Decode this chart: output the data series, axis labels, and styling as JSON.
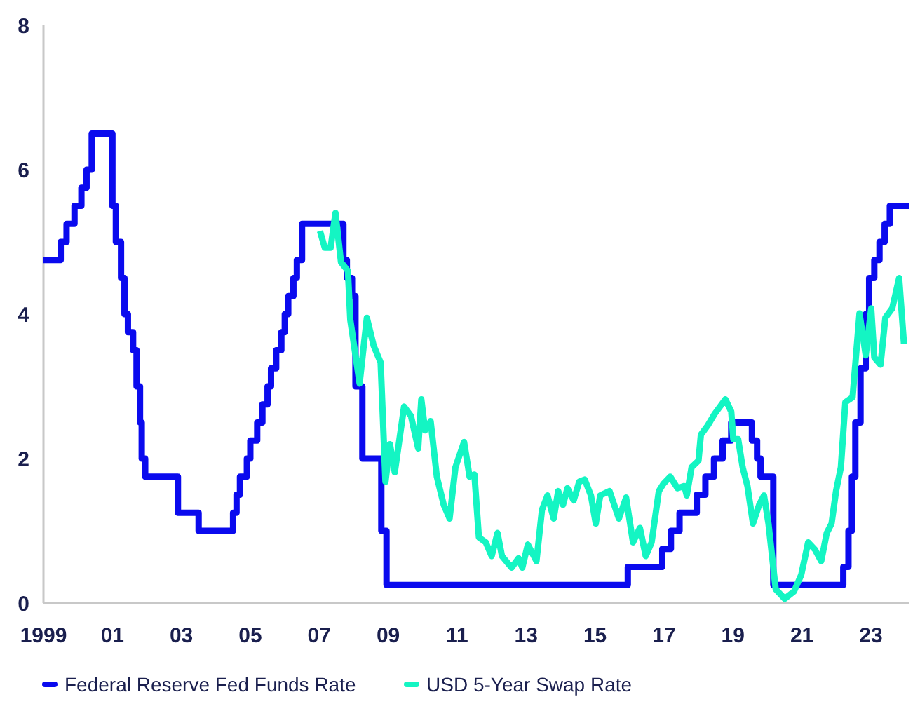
{
  "chart_data": {
    "type": "line",
    "xlim": [
      1999,
      2024.1
    ],
    "ylim": [
      0,
      8
    ],
    "yticks": [
      0,
      2,
      4,
      6,
      8
    ],
    "xticks": [
      {
        "value": 1999,
        "label": "1999"
      },
      {
        "value": 2001,
        "label": "01"
      },
      {
        "value": 2003,
        "label": "03"
      },
      {
        "value": 2005,
        "label": "05"
      },
      {
        "value": 2007,
        "label": "07"
      },
      {
        "value": 2009,
        "label": "09"
      },
      {
        "value": 2011,
        "label": "11"
      },
      {
        "value": 2013,
        "label": "13"
      },
      {
        "value": 2015,
        "label": "15"
      },
      {
        "value": 2017,
        "label": "17"
      },
      {
        "value": 2019,
        "label": "19"
      },
      {
        "value": 2021,
        "label": "21"
      },
      {
        "value": 2023,
        "label": "23"
      }
    ],
    "grid": false,
    "legend": "bottom",
    "marker": "none",
    "line_style": "solid",
    "series": [
      {
        "name": "Federal Reserve Fed Funds Rate",
        "type": "step",
        "color": "#0a0aee",
        "x": [
          1999,
          1999.5,
          1999.67,
          1999.9,
          2000.1,
          2000.25,
          2000.4,
          2001,
          2001.1,
          2001.25,
          2001.35,
          2001.45,
          2001.6,
          2001.7,
          2001.8,
          2001.85,
          2001.95,
          2002.9,
          2003.5,
          2004.5,
          2004.6,
          2004.7,
          2004.9,
          2005,
          2005.2,
          2005.35,
          2005.5,
          2005.6,
          2005.75,
          2005.9,
          2006,
          2006.1,
          2006.25,
          2006.35,
          2006.5,
          2007.7,
          2007.8,
          2007.95,
          2008.05,
          2008.25,
          2008.8,
          2008.95,
          2015.95,
          2016.95,
          2017.2,
          2017.45,
          2017.95,
          2018.2,
          2018.45,
          2018.7,
          2018.95,
          2019.55,
          2019.7,
          2019.8,
          2020.17,
          2022.2,
          2022.35,
          2022.45,
          2022.55,
          2022.7,
          2022.85,
          2022.95,
          2023.1,
          2023.25,
          2023.4,
          2023.55,
          2024.1
        ],
        "values": [
          4.75,
          5,
          5.25,
          5.5,
          5.75,
          6,
          6.5,
          5.5,
          5,
          4.5,
          4,
          3.75,
          3.5,
          3,
          2.5,
          2,
          1.75,
          1.25,
          1,
          1.25,
          1.5,
          1.75,
          2,
          2.25,
          2.5,
          2.75,
          3,
          3.25,
          3.5,
          3.75,
          4,
          4.25,
          4.5,
          4.75,
          5.25,
          4.75,
          4.5,
          4.25,
          3,
          2,
          1,
          0.25,
          0.5,
          0.75,
          1,
          1.25,
          1.5,
          1.75,
          2,
          2.25,
          2.5,
          2.25,
          2,
          1.75,
          0.25,
          0.5,
          1,
          1.75,
          2.5,
          3.25,
          4,
          4.5,
          4.75,
          5,
          5.25,
          5.5,
          5.5
        ]
      },
      {
        "name": "USD 5-Year Swap Rate",
        "color": "#14f5c3",
        "x": [
          2007.02,
          2007.16,
          2007.33,
          2007.47,
          2007.63,
          2007.83,
          2007.9,
          2008.17,
          2008.38,
          2008.58,
          2008.78,
          2008.92,
          2009.05,
          2009.19,
          2009.46,
          2009.66,
          2009.87,
          2009.96,
          2010.07,
          2010.23,
          2010.41,
          2010.61,
          2010.78,
          2010.95,
          2011.2,
          2011.36,
          2011.5,
          2011.63,
          2011.83,
          2012,
          2012.17,
          2012.3,
          2012.58,
          2012.78,
          2012.89,
          2013.05,
          2013.3,
          2013.46,
          2013.62,
          2013.8,
          2013.93,
          2014.07,
          2014.2,
          2014.38,
          2014.54,
          2014.7,
          2014.88,
          2015.02,
          2015.15,
          2015.42,
          2015.69,
          2015.9,
          2016.1,
          2016.3,
          2016.47,
          2016.64,
          2016.85,
          2016.98,
          2017.18,
          2017.39,
          2017.59,
          2017.66,
          2017.8,
          2018,
          2018.07,
          2018.27,
          2018.47,
          2018.78,
          2018.95,
          2019.01,
          2019.15,
          2019.28,
          2019.42,
          2019.58,
          2019.76,
          2019.9,
          2020.03,
          2020.24,
          2020.5,
          2020.77,
          2020.98,
          2021.18,
          2021.38,
          2021.56,
          2021.72,
          2021.86,
          2021.99,
          2022.13,
          2022.26,
          2022.47,
          2022.67,
          2022.85,
          2023.01,
          2023.1,
          2023.28,
          2023.42,
          2023.62,
          2023.82,
          2023.96
        ],
        "values": [
          5.15,
          4.92,
          4.92,
          5.4,
          4.72,
          4.6,
          3.92,
          3.04,
          3.95,
          3.56,
          3.33,
          1.68,
          2.2,
          1.81,
          2.72,
          2.59,
          2.14,
          2.82,
          2.39,
          2.52,
          1.75,
          1.36,
          1.17,
          1.88,
          2.23,
          1.75,
          1.78,
          0.91,
          0.84,
          0.65,
          0.97,
          0.65,
          0.49,
          0.62,
          0.49,
          0.81,
          0.58,
          1.29,
          1.49,
          1.17,
          1.55,
          1.36,
          1.59,
          1.42,
          1.68,
          1.71,
          1.49,
          1.1,
          1.49,
          1.55,
          1.17,
          1.46,
          0.84,
          1.04,
          0.65,
          0.84,
          1.55,
          1.65,
          1.75,
          1.59,
          1.62,
          1.49,
          1.88,
          1.97,
          2.33,
          2.46,
          2.62,
          2.82,
          2.65,
          2.27,
          2.27,
          1.88,
          1.62,
          1.1,
          1.36,
          1.49,
          1.1,
          0.19,
          0.06,
          0.16,
          0.39,
          0.84,
          0.74,
          0.58,
          0.97,
          1.1,
          1.55,
          1.88,
          2.78,
          2.85,
          4.01,
          3.43,
          4.08,
          3.4,
          3.3,
          3.95,
          4.08,
          4.5,
          3.59
        ]
      }
    ]
  }
}
